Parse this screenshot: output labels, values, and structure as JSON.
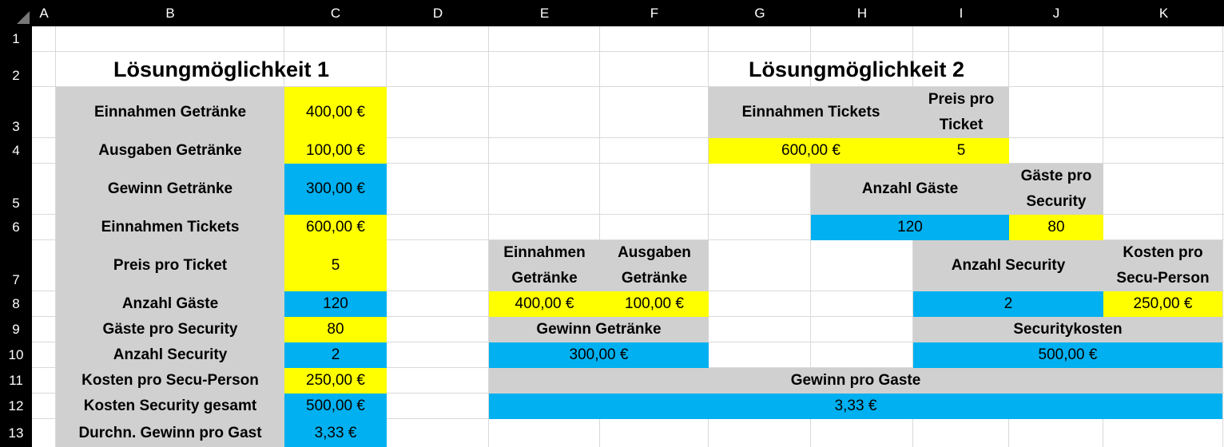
{
  "sheet": {
    "columns": [
      "A",
      "B",
      "C",
      "D",
      "E",
      "F",
      "G",
      "H",
      "I",
      "J",
      "K"
    ],
    "rows": [
      "1",
      "2",
      "3",
      "4",
      "5",
      "6",
      "7",
      "8",
      "9",
      "10",
      "11",
      "12",
      "13"
    ]
  },
  "solution1": {
    "title": "Lösungmöglichkeit 1",
    "rows": [
      {
        "label": "Einnahmen Getränke",
        "value": "400,00 €",
        "color": "#ffff00"
      },
      {
        "label": "Ausgaben Getränke",
        "value": "100,00 €",
        "color": "#ffff00"
      },
      {
        "label": "Gewinn Getränke",
        "value": "300,00 €",
        "color": "#00b0f0"
      },
      {
        "label": "Einnahmen Tickets",
        "value": "600,00 €",
        "color": "#ffff00"
      },
      {
        "label": "Preis pro Ticket",
        "value": "5",
        "color": "#ffff00"
      },
      {
        "label": "Anzahl Gäste",
        "value": "120",
        "color": "#00b0f0"
      },
      {
        "label": "Gäste pro Security",
        "value": "80",
        "color": "#ffff00"
      },
      {
        "label": "Anzahl Security",
        "value": "2",
        "color": "#00b0f0"
      },
      {
        "label": "Kosten pro Secu-Person",
        "value": "250,00 €",
        "color": "#ffff00"
      },
      {
        "label": "Kosten Security gesamt",
        "value": "500,00 €",
        "color": "#00b0f0"
      },
      {
        "label": "Durchn. Gewinn pro Gast",
        "value": "3,33 €",
        "color": "#00b0f0"
      }
    ]
  },
  "solution2": {
    "title": "Lösungmöglichkeit 2",
    "tickets_label": "Einnahmen Tickets",
    "price_label_1": "Preis pro",
    "price_label_2": "Ticket",
    "tickets_value": "600,00 €",
    "price_value": "5",
    "guests_label": "Anzahl Gäste",
    "guests_per_sec_label_1": "Gäste pro",
    "guests_per_sec_label_2": "Security",
    "guests_value": "120",
    "guests_per_sec_value": "80",
    "income_drinks_label_1": "Einnahmen",
    "income_drinks_label_2": "Getränke",
    "expenses_drinks_label_1": "Ausgaben",
    "expenses_drinks_label_2": "Getränke",
    "income_drinks_value": "400,00 €",
    "expenses_drinks_value": "100,00 €",
    "profit_drinks_label": "Gewinn Getränke",
    "profit_drinks_value": "300,00 €",
    "security_count_label": "Anzahl Security",
    "cost_per_person_label_1": "Kosten pro",
    "cost_per_person_label_2": "Secu-Person",
    "security_count_value": "2",
    "cost_per_person_value": "250,00 €",
    "security_costs_label": "Securitykosten",
    "security_costs_value": "500,00 €",
    "profit_per_guest_label": "Gewinn pro Gaste",
    "profit_per_guest_value": "3,33 €"
  }
}
